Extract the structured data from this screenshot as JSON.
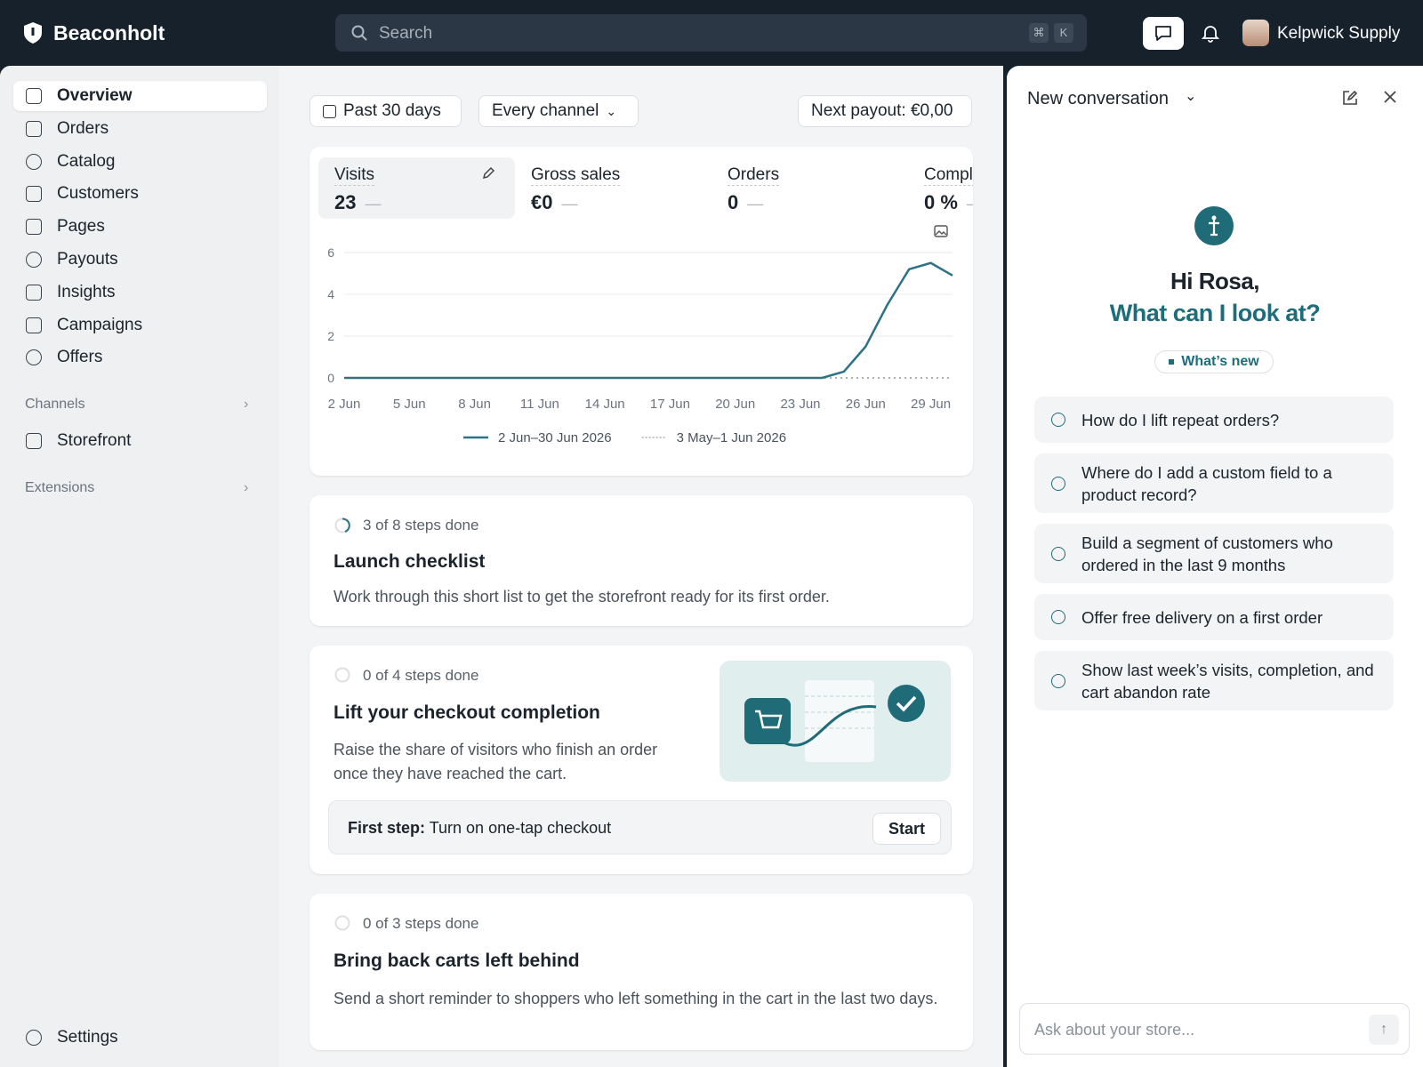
{
  "topbar": {
    "brand": "Beaconholt",
    "search_placeholder": "Search",
    "shortcut": [
      "⌘",
      "K"
    ],
    "account": "Kelpwick Supply"
  },
  "sidebar": {
    "nav": [
      "Overview",
      "Orders",
      "Catalog",
      "Customers",
      "Pages",
      "Payouts",
      "Insights",
      "Campaigns",
      "Offers"
    ],
    "channels_heading": "Channels",
    "channels": [
      "Storefront"
    ],
    "extensions_heading": "Extensions",
    "settings": "Settings"
  },
  "filters": {
    "date_range": "Past 30 days",
    "channel": "Every channel",
    "payout": "Next payout: €0,00"
  },
  "metrics": [
    {
      "label": "Visits",
      "value": "23",
      "change": "—"
    },
    {
      "label": "Gross sales",
      "value": "€0",
      "change": "—"
    },
    {
      "label": "Orders",
      "value": "0",
      "change": "—"
    },
    {
      "label": "Completion",
      "value": "0 %",
      "change": "—"
    }
  ],
  "chart_data": {
    "type": "line",
    "categories": [
      "2 Jun",
      null,
      null,
      "5 Jun",
      null,
      null,
      "8 Jun",
      null,
      null,
      "11 Jun",
      null,
      null,
      "14 Jun",
      null,
      null,
      "17 Jun",
      null,
      null,
      "20 Jun",
      null,
      null,
      "23 Jun",
      null,
      null,
      "26 Jun",
      null,
      null,
      "29 Jun",
      null
    ],
    "series": [
      {
        "name": "2 Jun–30 Jun 2026",
        "color": "#2e7287",
        "style": "solid",
        "values": [
          0,
          0,
          0,
          0,
          0,
          0,
          0,
          0,
          0,
          0,
          0,
          0,
          0,
          0,
          0,
          0,
          0,
          0,
          0,
          0,
          0,
          0,
          0,
          0.3,
          1.5,
          3.5,
          5.2,
          5.5,
          4.9
        ]
      },
      {
        "name": "3 May–1 Jun 2026",
        "color": "#a9afb5",
        "style": "dotted",
        "values": [
          0,
          0,
          0,
          0,
          0,
          0,
          0,
          0,
          0,
          0,
          0,
          0,
          0,
          0,
          0,
          0,
          0,
          0,
          0,
          0,
          0,
          0,
          0,
          0,
          0,
          0,
          0,
          0,
          0
        ]
      }
    ],
    "ylim": [
      0,
      6
    ],
    "yticks": [
      0,
      2,
      4,
      6
    ],
    "grid": true
  },
  "checklists": [
    {
      "progress": "3 of 8 steps done",
      "title": "Launch checklist",
      "description": "Work through this short list to get the storefront ready for its first order."
    },
    {
      "progress": "0 of 4 steps done",
      "title": "Lift your checkout completion",
      "description": "Raise the share of visitors who finish an order once they have reached the cart.",
      "first_step_label": "First step:",
      "first_step": "Turn on one-tap checkout",
      "button": "Start"
    },
    {
      "progress": "0 of 3 steps done",
      "title": "Bring back carts left behind",
      "description": "Send a short reminder to shoppers who left something in the cart in the last two days."
    }
  ],
  "chat": {
    "title": "New conversation",
    "greeting": "Hi Rosa,",
    "prompt": "What can I look at?",
    "badge": "What’s new",
    "suggestions": [
      "How do I lift repeat orders?",
      "Where do I add a custom field to a product record?",
      "Build a segment of customers who ordered in the last 9 months",
      "Offer free delivery on a first order",
      "Show last week’s visits, completion, and cart abandon rate"
    ],
    "input_placeholder": "Ask about your store..."
  }
}
